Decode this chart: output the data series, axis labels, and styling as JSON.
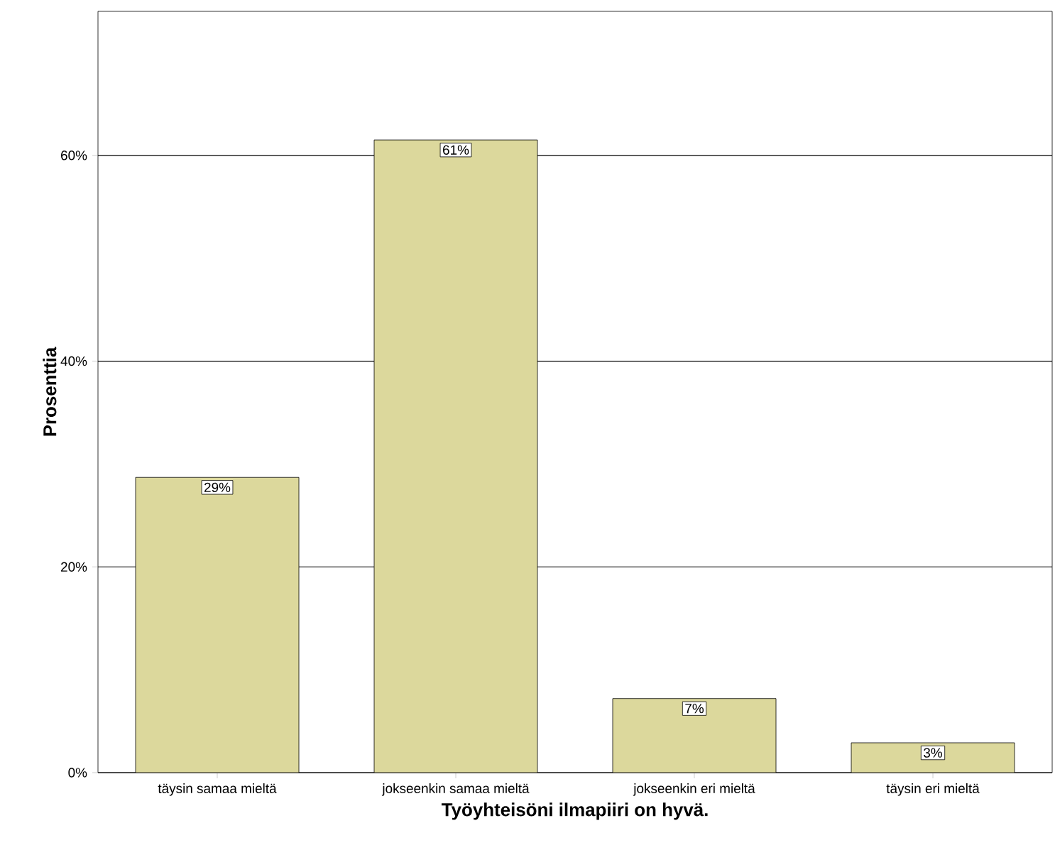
{
  "chart_data": {
    "type": "bar",
    "xlabel": "Työyhteisöni ilmapiiri on hyvä.",
    "ylabel": "Prosenttia",
    "categories": [
      "täysin samaa mieltä",
      "jokseenkin samaa mieltä",
      "jokseenkin eri mieltä",
      "täysin eri mieltä"
    ],
    "values": [
      28.7,
      61.5,
      7.2,
      2.9
    ],
    "value_labels": [
      "29%",
      "61%",
      "7%",
      "3%"
    ],
    "color": "#dcd89c",
    "ylim": [
      0,
      74
    ],
    "yticks": [
      {
        "value": 0,
        "label": "0%"
      },
      {
        "value": 20,
        "label": "20%"
      },
      {
        "value": 40,
        "label": "40%"
      },
      {
        "value": 60,
        "label": "60%"
      }
    ],
    "grid": "y"
  }
}
